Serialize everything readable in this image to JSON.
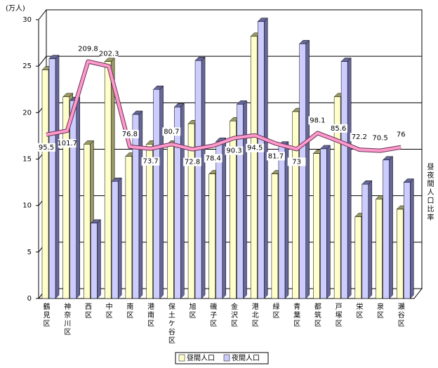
{
  "chart_data": {
    "type": "bar",
    "y_label": "(万人)",
    "annotation": "昼夜間人口比率",
    "categories": [
      "鶴見区",
      "神奈川区",
      "西区",
      "中区",
      "南区",
      "港南区",
      "保土ケ谷区",
      "旭区",
      "磯子区",
      "金沢区",
      "港北区",
      "緑区",
      "青葉区",
      "都筑区",
      "戸塚区",
      "栄区",
      "泉区",
      "瀬谷区"
    ],
    "series": [
      {
        "name": "昼間人口",
        "color": "#ffffcc",
        "values": [
          24.6,
          21.7,
          16.6,
          25.5,
          15.3,
          16.6,
          16.6,
          18.8,
          13.4,
          19.1,
          28.2,
          13.4,
          20.1,
          15.6,
          21.7,
          8.8,
          10.7,
          9.6
        ]
      },
      {
        "name": "夜間人口",
        "color": "#ccccff",
        "values": [
          25.8,
          21.3,
          8.1,
          12.6,
          19.8,
          22.5,
          20.6,
          25.6,
          16.9,
          20.9,
          29.8,
          16.5,
          27.4,
          16.1,
          25.5,
          12.3,
          14.9,
          12.5
        ]
      },
      {
        "name": "昼夜間人口比率",
        "type": "line",
        "axis": "y2",
        "color": "#ff99cc",
        "values": [
          95.5,
          101.7,
          209.8,
          202.3,
          76.8,
          73.7,
          80.7,
          72.8,
          78.4,
          90.3,
          94.5,
          81.7,
          73.0,
          98.1,
          85.6,
          72.2,
          70.5,
          76.0
        ]
      }
    ],
    "ylim": [
      0,
      30
    ],
    "yticks": [
      0,
      5,
      10,
      15,
      20,
      25,
      30
    ],
    "y2lim": [
      -160,
      275
    ],
    "grid": true
  }
}
